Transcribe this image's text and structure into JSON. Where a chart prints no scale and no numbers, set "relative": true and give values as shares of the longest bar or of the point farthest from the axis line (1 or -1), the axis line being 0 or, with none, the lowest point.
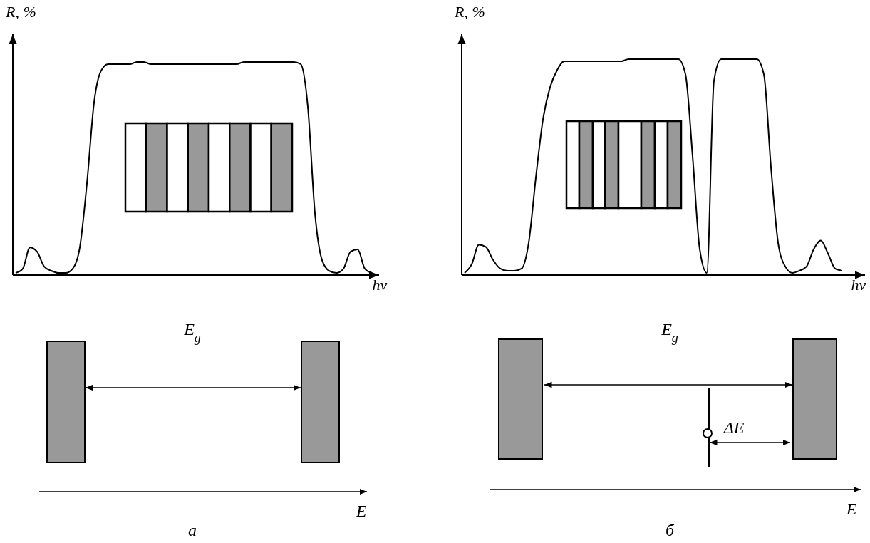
{
  "chart_data": [
    {
      "type": "line",
      "relative": true,
      "xlabel": "hν",
      "ylabel": "R, %",
      "categories": [
        null,
        null,
        null,
        null,
        null,
        null,
        null,
        null,
        null,
        null,
        null,
        null,
        null,
        null,
        null,
        null,
        null,
        null,
        null,
        null,
        null,
        null,
        null,
        null,
        null,
        null,
        null,
        null,
        null,
        null,
        null,
        null,
        null,
        null,
        null,
        null,
        null,
        null,
        null,
        null,
        null,
        null,
        null,
        null,
        null,
        null,
        null,
        null,
        null,
        null,
        null
      ],
      "series": [
        {
          "color": "#000000",
          "values": [
            0.01,
            0.03,
            0.13,
            0.11,
            0.04,
            0.02,
            0.01,
            0.01,
            0.03,
            0.13,
            0.43,
            0.81,
            0.96,
            0.99,
            0.99,
            0.99,
            0.99,
            1.0,
            1.0,
            0.99,
            0.99,
            0.99,
            0.99,
            0.99,
            0.99,
            0.99,
            0.99,
            0.99,
            0.99,
            0.99,
            0.99,
            0.99,
            1.0,
            1.0,
            1.0,
            1.0,
            1.0,
            1.0,
            1.0,
            1.0,
            0.99,
            0.79,
            0.29,
            0.07,
            0.02,
            0.01,
            0.03,
            0.11,
            0.12,
            0.03,
            0.01
          ]
        }
      ],
      "annotations": [
        "E$_{g}$",
        "E",
        "а"
      ]
    },
    {
      "type": "line",
      "relative": true,
      "xlabel": "hν",
      "ylabel": "R, %",
      "categories": [
        null,
        null,
        null,
        null,
        null,
        null,
        null,
        null,
        null,
        null,
        null,
        null,
        null,
        null,
        null,
        null,
        null,
        null,
        null,
        null,
        null,
        null,
        null,
        null,
        null,
        null,
        null,
        null,
        null,
        null,
        null,
        null,
        null,
        null,
        null,
        null,
        null,
        null,
        null,
        null,
        null,
        null,
        null,
        null,
        null,
        null,
        null,
        null,
        null,
        null,
        null,
        null,
        null,
        null
      ],
      "series": [
        {
          "color": "#000000",
          "values": [
            0.01,
            0.05,
            0.14,
            0.13,
            0.07,
            0.03,
            0.02,
            0.02,
            0.03,
            0.15,
            0.45,
            0.72,
            0.87,
            0.95,
            0.99,
            0.99,
            0.99,
            0.99,
            0.99,
            0.99,
            0.99,
            0.99,
            0.99,
            1.0,
            1.0,
            1.0,
            1.0,
            1.0,
            1.0,
            1.0,
            1.0,
            0.93,
            0.55,
            0.12,
            0.01,
            0.9,
            1.0,
            1.0,
            1.0,
            1.0,
            1.0,
            1.0,
            0.93,
            0.5,
            0.15,
            0.04,
            0.01,
            0.02,
            0.04,
            0.12,
            0.16,
            0.1,
            0.03,
            0.02
          ]
        }
      ],
      "annotations": [
        "E$_{g}$",
        "ΔE",
        "E",
        "б"
      ]
    }
  ]
}
